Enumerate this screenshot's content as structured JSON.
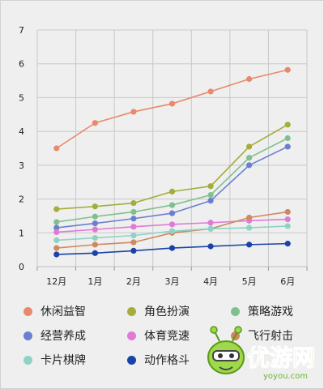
{
  "chart_data": {
    "type": "line",
    "categories": [
      "12月",
      "1月",
      "2月",
      "3月",
      "4月",
      "5月",
      "6月"
    ],
    "ylim": [
      0,
      7
    ],
    "yticks": [
      "0",
      "1",
      "2",
      "3",
      "4",
      "5",
      "6",
      "7"
    ],
    "grid": true,
    "legend_position": "bottom",
    "series": [
      {
        "name": "休闲益智",
        "color": "#e8896b",
        "values": [
          3.5,
          4.25,
          4.58,
          4.82,
          5.18,
          5.55,
          5.82
        ]
      },
      {
        "name": "角色扮演",
        "color": "#a3ad3a",
        "values": [
          1.7,
          1.78,
          1.88,
          2.22,
          2.38,
          3.55,
          4.2
        ]
      },
      {
        "name": "策略游戏",
        "color": "#7fc08f",
        "values": [
          1.32,
          1.48,
          1.62,
          1.82,
          2.12,
          3.22,
          3.8
        ]
      },
      {
        "name": "经营养成",
        "color": "#6a7fd0",
        "values": [
          1.15,
          1.28,
          1.42,
          1.58,
          1.95,
          3.0,
          3.55
        ]
      },
      {
        "name": "体育竞速",
        "color": "#e07ad6",
        "values": [
          1.02,
          1.1,
          1.18,
          1.25,
          1.3,
          1.36,
          1.4
        ]
      },
      {
        "name": "飞行射击",
        "color": "#d08860",
        "values": [
          0.55,
          0.65,
          0.72,
          1.0,
          1.12,
          1.45,
          1.62
        ]
      },
      {
        "name": "卡片棋牌",
        "color": "#8fd3c4",
        "values": [
          0.78,
          0.85,
          0.92,
          1.05,
          1.12,
          1.15,
          1.2
        ]
      },
      {
        "name": "动作格斗",
        "color": "#1a43a8",
        "values": [
          0.36,
          0.4,
          0.47,
          0.55,
          0.6,
          0.65,
          0.68
        ]
      }
    ]
  },
  "watermark": {
    "brand": "优游网",
    "domain": "yoyou.com"
  }
}
